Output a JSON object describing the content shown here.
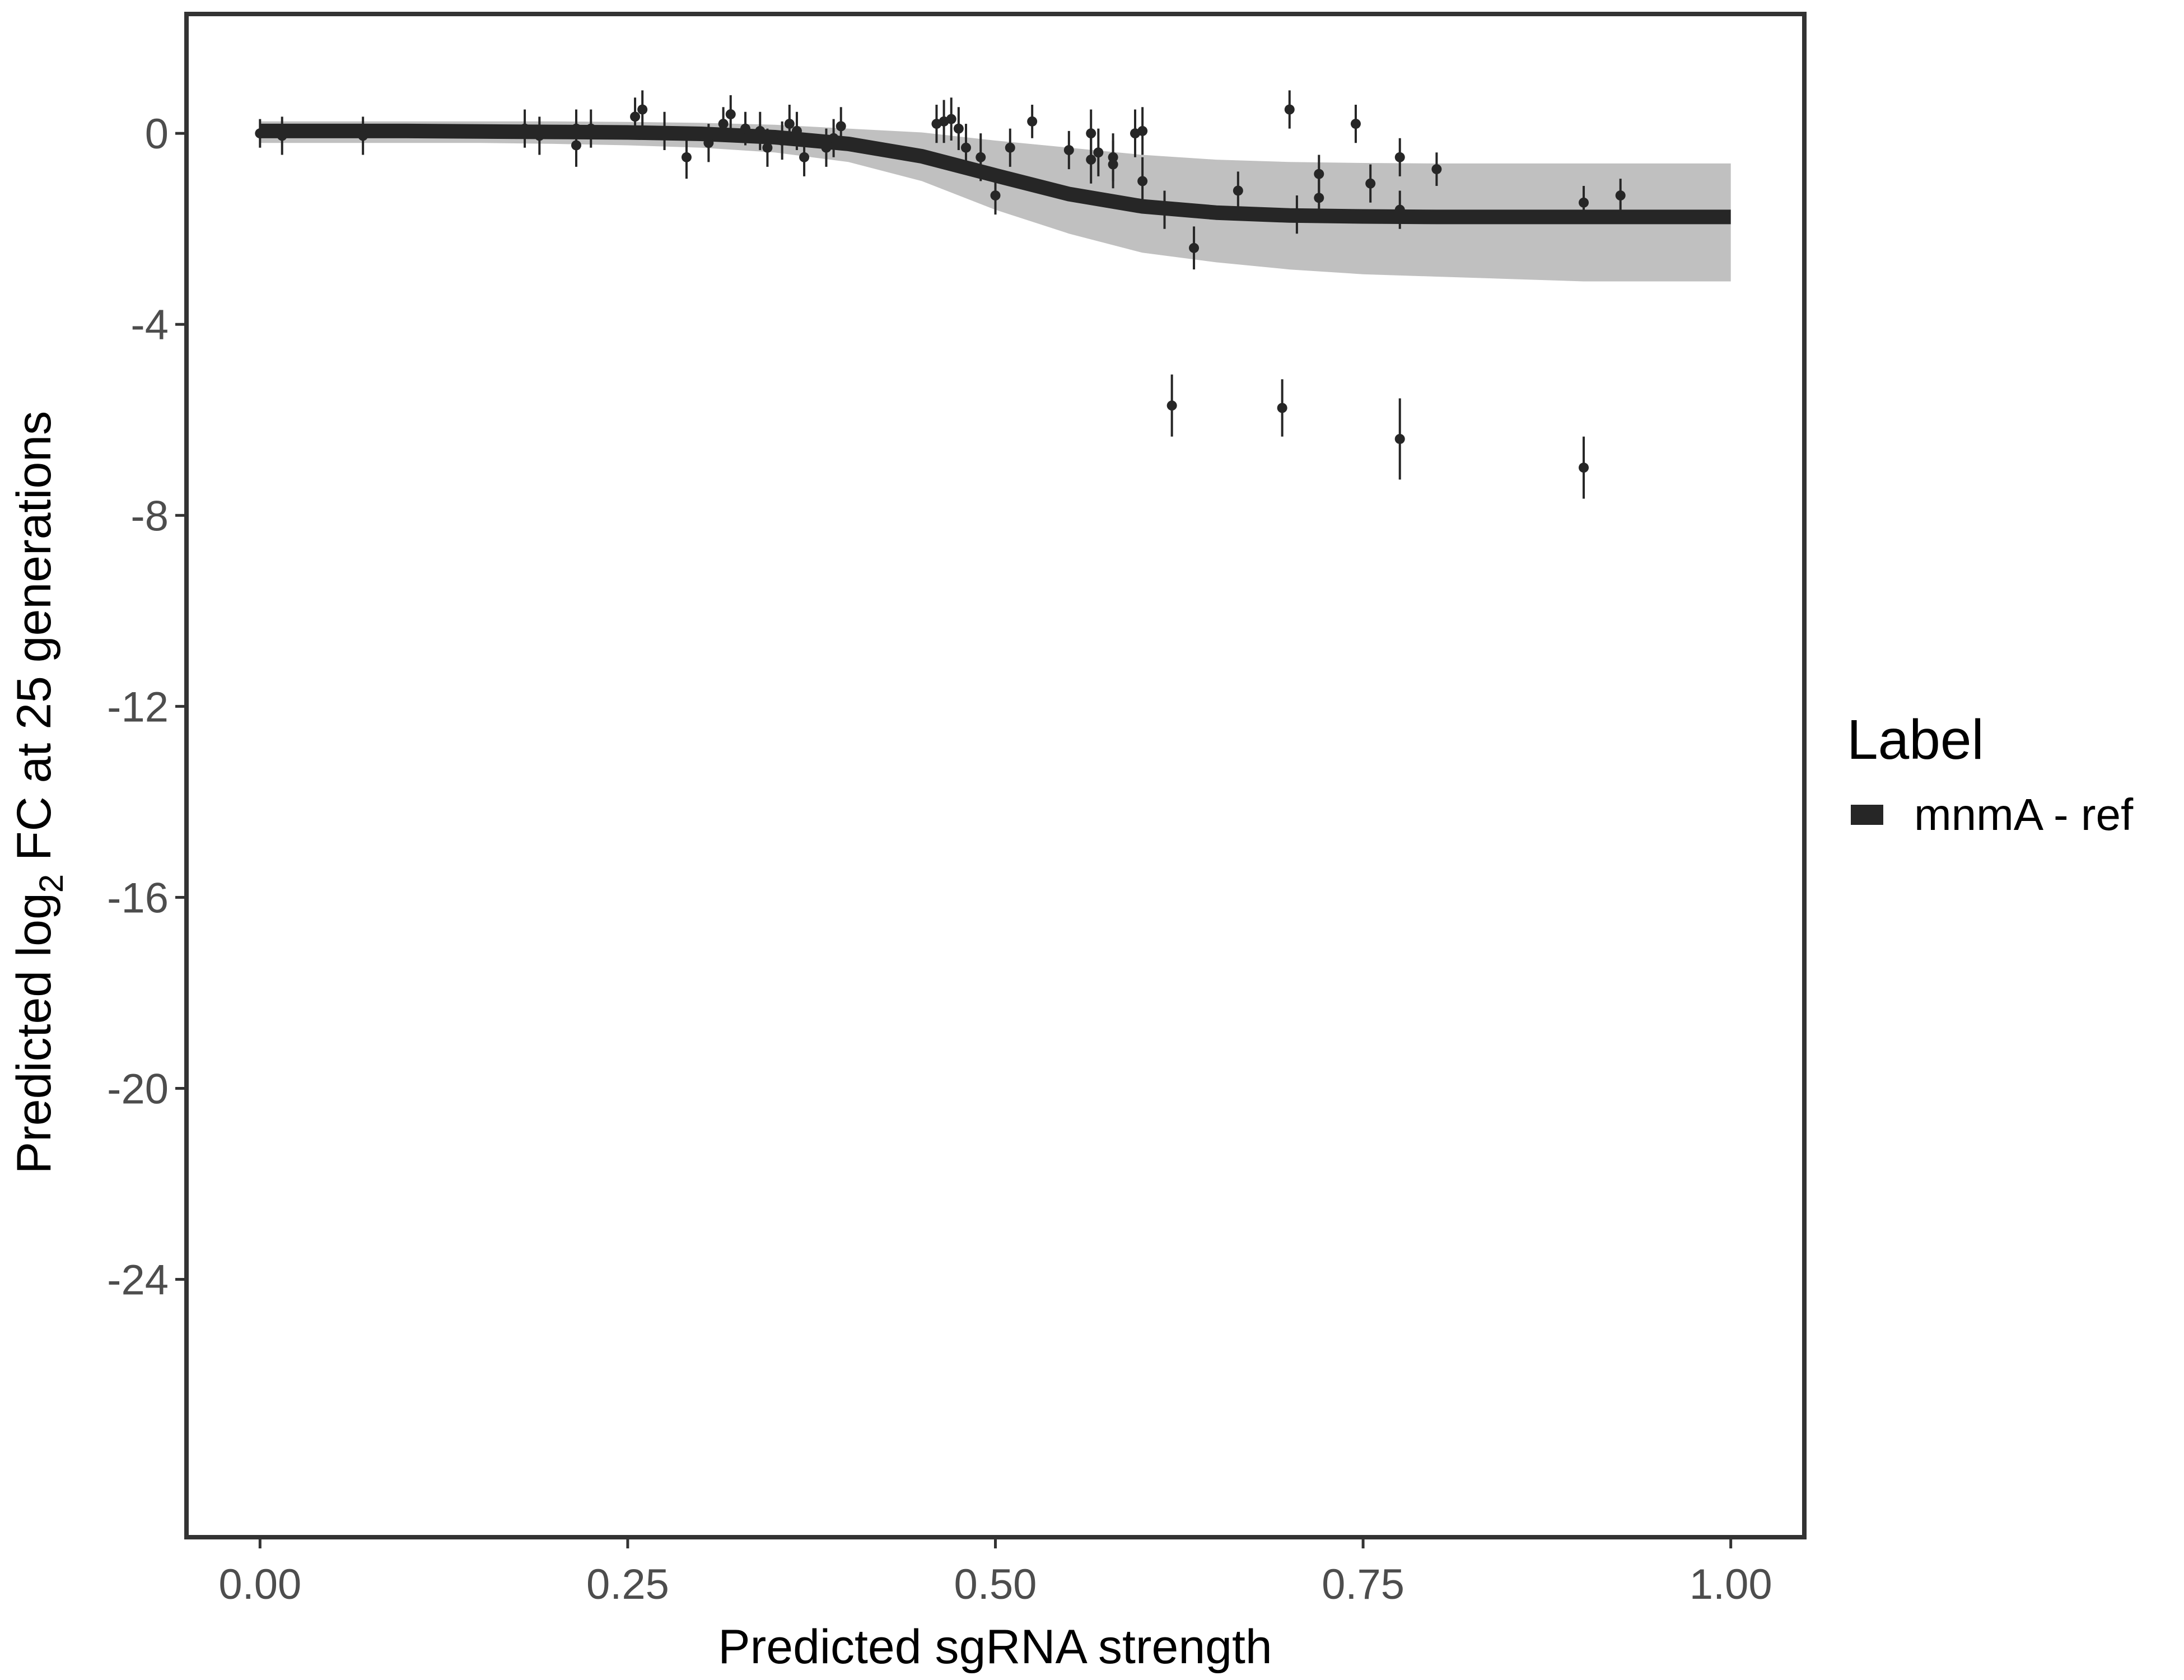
{
  "chart_data": {
    "type": "scatter",
    "xlabel": "Predicted sgRNA strength",
    "ylabel": {
      "prefix": "Predicted  log",
      "subscript": "2",
      "suffix": " FC at 25 generations"
    },
    "xlim": [
      -0.05,
      1.05
    ],
    "ylim": [
      -29.4,
      2.5
    ],
    "x_ticks": [
      0.0,
      0.25,
      0.5,
      0.75,
      1.0
    ],
    "x_tick_labels": [
      "0.00",
      "0.25",
      "0.50",
      "0.75",
      "1.00"
    ],
    "y_ticks": [
      0,
      -4,
      -8,
      -12,
      -16,
      -20,
      -24
    ],
    "y_tick_labels": [
      "0",
      "-4",
      "-8",
      "-12",
      "-16",
      "-20",
      "-24"
    ],
    "grid": false,
    "legend": {
      "title": "Label",
      "position": "right",
      "entries": [
        {
          "name": "mnmA - ref",
          "color": "#262626"
        }
      ]
    },
    "colors": {
      "fit_line": "#262626",
      "band": "#8c8c8c",
      "points": "#262626",
      "frame": "#333333"
    },
    "fit_curve": {
      "name": "mnmA - ref",
      "x": [
        0.0,
        0.05,
        0.1,
        0.15,
        0.2,
        0.25,
        0.3,
        0.35,
        0.4,
        0.45,
        0.5,
        0.55,
        0.6,
        0.65,
        0.7,
        0.75,
        0.8,
        0.85,
        0.9,
        0.95,
        1.0
      ],
      "y": [
        0.05,
        0.05,
        0.05,
        0.04,
        0.03,
        0.02,
        -0.01,
        -0.08,
        -0.22,
        -0.48,
        -0.88,
        -1.27,
        -1.53,
        -1.66,
        -1.72,
        -1.74,
        -1.75,
        -1.75,
        -1.75,
        -1.75,
        -1.75
      ]
    },
    "uncertainty_band": {
      "x": [
        0.0,
        0.05,
        0.1,
        0.15,
        0.2,
        0.25,
        0.3,
        0.35,
        0.4,
        0.45,
        0.5,
        0.55,
        0.6,
        0.65,
        0.7,
        0.75,
        0.8,
        0.85,
        0.9,
        0.95,
        1.0
      ],
      "upper": [
        0.25,
        0.25,
        0.25,
        0.25,
        0.25,
        0.24,
        0.22,
        0.18,
        0.1,
        0.02,
        -0.15,
        -0.3,
        -0.45,
        -0.55,
        -0.6,
        -0.62,
        -0.63,
        -0.63,
        -0.63,
        -0.63,
        -0.63
      ],
      "lower": [
        -0.2,
        -0.2,
        -0.2,
        -0.2,
        -0.22,
        -0.25,
        -0.3,
        -0.4,
        -0.6,
        -1.0,
        -1.6,
        -2.1,
        -2.5,
        -2.7,
        -2.85,
        -2.95,
        -3.0,
        -3.05,
        -3.1,
        -3.1,
        -3.1
      ]
    },
    "points": [
      {
        "x": 0.0,
        "y": 0.0,
        "err": 0.3
      },
      {
        "x": 0.015,
        "y": -0.05,
        "err": 0.4
      },
      {
        "x": 0.07,
        "y": -0.05,
        "err": 0.4
      },
      {
        "x": 0.18,
        "y": 0.1,
        "err": 0.4
      },
      {
        "x": 0.19,
        "y": -0.05,
        "err": 0.4
      },
      {
        "x": 0.215,
        "y": -0.25,
        "err": 0.45
      },
      {
        "x": 0.215,
        "y": 0.1,
        "err": 0.4
      },
      {
        "x": 0.225,
        "y": 0.1,
        "err": 0.4
      },
      {
        "x": 0.255,
        "y": 0.35,
        "err": 0.4
      },
      {
        "x": 0.26,
        "y": 0.5,
        "err": 0.4
      },
      {
        "x": 0.275,
        "y": 0.05,
        "err": 0.4
      },
      {
        "x": 0.29,
        "y": -0.5,
        "err": 0.45
      },
      {
        "x": 0.305,
        "y": -0.2,
        "err": 0.4
      },
      {
        "x": 0.315,
        "y": 0.2,
        "err": 0.35
      },
      {
        "x": 0.32,
        "y": 0.4,
        "err": 0.4
      },
      {
        "x": 0.33,
        "y": 0.1,
        "err": 0.35
      },
      {
        "x": 0.34,
        "y": 0.05,
        "err": 0.4
      },
      {
        "x": 0.345,
        "y": -0.3,
        "err": 0.4
      },
      {
        "x": 0.355,
        "y": -0.15,
        "err": 0.4
      },
      {
        "x": 0.36,
        "y": 0.2,
        "err": 0.4
      },
      {
        "x": 0.365,
        "y": 0.05,
        "err": 0.4
      },
      {
        "x": 0.37,
        "y": -0.5,
        "err": 0.4
      },
      {
        "x": 0.385,
        "y": -0.3,
        "err": 0.4
      },
      {
        "x": 0.39,
        "y": -0.1,
        "err": 0.4
      },
      {
        "x": 0.395,
        "y": 0.15,
        "err": 0.4
      },
      {
        "x": 0.46,
        "y": 0.2,
        "err": 0.4
      },
      {
        "x": 0.465,
        "y": 0.25,
        "err": 0.45
      },
      {
        "x": 0.47,
        "y": 0.3,
        "err": 0.45
      },
      {
        "x": 0.475,
        "y": 0.1,
        "err": 0.45
      },
      {
        "x": 0.48,
        "y": -0.3,
        "err": 0.5
      },
      {
        "x": 0.49,
        "y": -0.5,
        "err": 0.5
      },
      {
        "x": 0.5,
        "y": -1.3,
        "err": 0.4
      },
      {
        "x": 0.51,
        "y": -0.3,
        "err": 0.4
      },
      {
        "x": 0.525,
        "y": 0.25,
        "err": 0.35
      },
      {
        "x": 0.55,
        "y": -0.35,
        "err": 0.4
      },
      {
        "x": 0.565,
        "y": -0.55,
        "err": 0.5
      },
      {
        "x": 0.565,
        "y": 0.0,
        "err": 0.5
      },
      {
        "x": 0.57,
        "y": -0.4,
        "err": 0.5
      },
      {
        "x": 0.58,
        "y": -0.5,
        "err": 0.5
      },
      {
        "x": 0.58,
        "y": -0.65,
        "err": 0.5
      },
      {
        "x": 0.595,
        "y": 0.0,
        "err": 0.5
      },
      {
        "x": 0.6,
        "y": 0.05,
        "err": 0.5
      },
      {
        "x": 0.6,
        "y": -1.0,
        "err": 0.5
      },
      {
        "x": 0.615,
        "y": -1.6,
        "err": 0.4
      },
      {
        "x": 0.62,
        "y": -5.7,
        "err": 0.65
      },
      {
        "x": 0.635,
        "y": -2.4,
        "err": 0.45
      },
      {
        "x": 0.665,
        "y": -1.2,
        "err": 0.4
      },
      {
        "x": 0.695,
        "y": -5.75,
        "err": 0.6
      },
      {
        "x": 0.7,
        "y": 0.5,
        "err": 0.4
      },
      {
        "x": 0.705,
        "y": -1.7,
        "err": 0.4
      },
      {
        "x": 0.72,
        "y": -1.35,
        "err": 0.4
      },
      {
        "x": 0.72,
        "y": -0.85,
        "err": 0.4
      },
      {
        "x": 0.745,
        "y": 0.2,
        "err": 0.4
      },
      {
        "x": 0.755,
        "y": -1.05,
        "err": 0.4
      },
      {
        "x": 0.775,
        "y": -6.4,
        "err": 0.85
      },
      {
        "x": 0.775,
        "y": -1.6,
        "err": 0.4
      },
      {
        "x": 0.775,
        "y": -0.5,
        "err": 0.4
      },
      {
        "x": 0.8,
        "y": -0.75,
        "err": 0.35
      },
      {
        "x": 0.9,
        "y": -1.45,
        "err": 0.35
      },
      {
        "x": 0.9,
        "y": -7.0,
        "err": 0.65
      },
      {
        "x": 0.925,
        "y": -1.3,
        "err": 0.35
      }
    ]
  }
}
